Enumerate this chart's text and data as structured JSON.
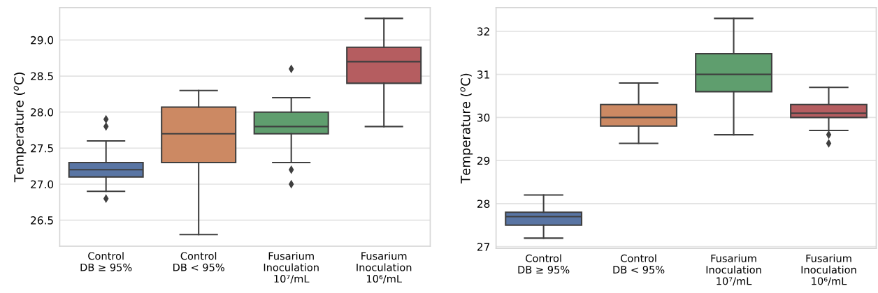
{
  "chart_data": [
    {
      "type": "box",
      "ylabel": "Temperature ($^{o}$C)",
      "categories": [
        "Control\nDB ≥ 95%",
        "Control\nDB < 95%",
        "Fusarium\nInoculation\n10⁷/mL",
        "Fusarium\nInoculation\n10⁶/mL"
      ],
      "colors": [
        "#5975a4",
        "#cc8963",
        "#5f9e6e",
        "#b55d60"
      ],
      "boxes": [
        {
          "low": 26.9,
          "q1": 27.1,
          "median": 27.2,
          "q3": 27.3,
          "high": 27.6,
          "outliers": [
            27.9,
            27.8,
            26.8
          ]
        },
        {
          "low": 26.3,
          "q1": 27.3,
          "median": 27.7,
          "q3": 28.07,
          "high": 28.3
        },
        {
          "low": 27.3,
          "q1": 27.7,
          "median": 27.8,
          "q3": 28.0,
          "high": 28.2,
          "outliers": [
            28.6,
            27.2,
            27.0
          ]
        },
        {
          "low": 27.8,
          "q1": 28.4,
          "median": 28.7,
          "q3": 28.9,
          "high": 29.3
        }
      ],
      "ylim": [
        26.14,
        29.45
      ],
      "yticks": [
        {
          "value": 26.5,
          "label": "26.5"
        },
        {
          "value": 27.0,
          "label": "27.0"
        },
        {
          "value": 27.5,
          "label": "27.5"
        },
        {
          "value": 28.0,
          "label": "28.0"
        },
        {
          "value": 28.5,
          "label": "28.5"
        },
        {
          "value": 29.0,
          "label": "29.0"
        }
      ],
      "grid": "y",
      "marker": "diamond"
    },
    {
      "type": "box",
      "ylabel": "Temperature ($^{o}$C)",
      "categories": [
        "Control\nDB ≥ 95%",
        "Control\nDB < 95%",
        "Fusarium\nInoculation\n10⁷/mL",
        "Fusarium\nInoculation\n10⁶/mL"
      ],
      "colors": [
        "#5975a4",
        "#cc8963",
        "#5f9e6e",
        "#b55d60"
      ],
      "boxes": [
        {
          "low": 27.2,
          "q1": 27.5,
          "median": 27.7,
          "q3": 27.8,
          "high": 28.2
        },
        {
          "low": 29.4,
          "q1": 29.8,
          "median": 30.0,
          "q3": 30.3,
          "high": 30.8
        },
        {
          "low": 29.6,
          "q1": 30.6,
          "median": 31.0,
          "q3": 31.48,
          "high": 32.3
        },
        {
          "low": 29.7,
          "q1": 30.0,
          "median": 30.1,
          "q3": 30.3,
          "high": 30.7,
          "outliers": [
            29.6,
            29.4
          ]
        }
      ],
      "ylim": [
        26.96,
        32.55
      ],
      "yticks": [
        27,
        28,
        29,
        30,
        31,
        32
      ],
      "grid": "y",
      "marker": "diamond"
    }
  ]
}
